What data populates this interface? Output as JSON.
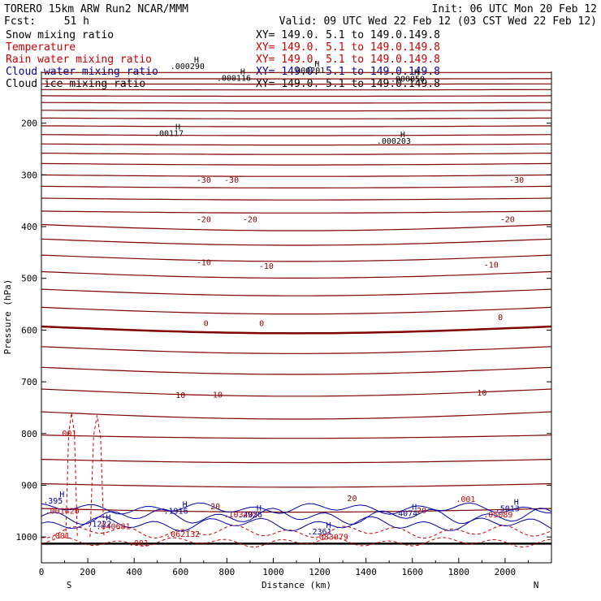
{
  "header": {
    "title": "TORERO  15km ARW   Run2    NCAR/MMM",
    "init": "Init: 06 UTC Mon 20 Feb 12",
    "fcst_label": "Fcst:",
    "fcst_value": "51 h",
    "valid": "Valid: 09 UTC Wed 22 Feb 12 (03 CST Wed 22 Feb 12)"
  },
  "legend": {
    "fields": [
      {
        "name": "Snow mixing ratio",
        "color": "#000000",
        "xy": "XY= 149.0.  5.1 to 149.0.149.8"
      },
      {
        "name": "Temperature",
        "color": "#cc0000",
        "xy": "XY= 149.0.  5.1 to 149.0.149.8"
      },
      {
        "name": "Rain water mixing ratio",
        "color": "#cc0000",
        "xy": "XY= 149.0.  5.1 to 149.0.149.8"
      },
      {
        "name": "Cloud water mixing ratio",
        "color": "#0000aa",
        "xy": "XY= 149.0.  5.1 to 149.0.149.8"
      },
      {
        "name": "Cloud ice mixing ratio",
        "color": "#000000",
        "xy": "XY= 149.0.  5.1 to 149.0.149.8"
      }
    ]
  },
  "chart_data": {
    "type": "contour-cross-section",
    "xlabel": "Distance (km)",
    "ylabel": "Pressure (hPa)",
    "x_ticks": [
      0,
      200,
      400,
      600,
      800,
      1000,
      1200,
      1400,
      1600,
      1800,
      2000
    ],
    "y_ticks": [
      200,
      300,
      400,
      500,
      600,
      700,
      800,
      900,
      1000
    ],
    "xlim": [
      0,
      2200
    ],
    "ylim": [
      1050,
      100
    ],
    "left_end_label": "S",
    "right_end_label": "N",
    "temperature_contour_labels": [
      {
        "x": 700,
        "p": 309,
        "text": "-30"
      },
      {
        "x": 820,
        "p": 309,
        "text": "-30"
      },
      {
        "x": 2050,
        "p": 309,
        "text": "-30"
      },
      {
        "x": 700,
        "p": 385,
        "text": "-20"
      },
      {
        "x": 900,
        "p": 385,
        "text": "-20"
      },
      {
        "x": 2010,
        "p": 385,
        "text": "-20"
      },
      {
        "x": 700,
        "p": 468,
        "text": "-10"
      },
      {
        "x": 970,
        "p": 475,
        "text": "-10"
      },
      {
        "x": 1940,
        "p": 473,
        "text": "-10"
      },
      {
        "x": 710,
        "p": 586,
        "text": "0"
      },
      {
        "x": 950,
        "p": 586,
        "text": "0"
      },
      {
        "x": 1980,
        "p": 574,
        "text": "0"
      },
      {
        "x": 600,
        "p": 725,
        "text": "10"
      },
      {
        "x": 760,
        "p": 724,
        "text": "10"
      },
      {
        "x": 1900,
        "p": 720,
        "text": "10"
      },
      {
        "x": 750,
        "p": 940,
        "text": "20"
      },
      {
        "x": 1340,
        "p": 924,
        "text": "20"
      },
      {
        "x": 1640,
        "p": 948,
        "text": "20"
      }
    ],
    "ice_maxima": [
      {
        "x": 630,
        "p": 95,
        "text": ".000290"
      },
      {
        "x": 830,
        "p": 118,
        "text": ".000116"
      },
      {
        "x": 1150,
        "p": 103,
        "text": ".000201"
      },
      {
        "x": 1580,
        "p": 120,
        "text": ".000850"
      },
      {
        "x": 550,
        "p": 225,
        "text": ".00117"
      },
      {
        "x": 1520,
        "p": 240,
        "text": ".000203"
      }
    ],
    "rain_labels": [
      {
        "x": 110,
        "p": 805,
        "text": ".001"
      },
      {
        "x": 80,
        "p": 1003,
        "text": ".001"
      },
      {
        "x": 420,
        "p": 1017,
        "text": ".001"
      },
      {
        "x": 90,
        "p": 955,
        "text": ".001420"
      },
      {
        "x": 310,
        "p": 985,
        "text": ".040681"
      },
      {
        "x": 610,
        "p": 1000,
        "text": ".062132"
      },
      {
        "x": 860,
        "p": 962,
        "text": ".103405"
      },
      {
        "x": 1250,
        "p": 1005,
        "text": ".083079"
      },
      {
        "x": 1830,
        "p": 932,
        "text": ".001"
      },
      {
        "x": 1970,
        "p": 962,
        "text": ".05089"
      }
    ],
    "cloud_water_labels": [
      {
        "x": 50,
        "p": 935,
        "text": ".395"
      },
      {
        "x": 250,
        "p": 980,
        "text": ".1222"
      },
      {
        "x": 580,
        "p": 955,
        "text": ".1916"
      },
      {
        "x": 900,
        "p": 962,
        "text": ".2926"
      },
      {
        "x": 1200,
        "p": 995,
        "text": ".2361"
      },
      {
        "x": 1570,
        "p": 960,
        "text": ".4074"
      },
      {
        "x": 2010,
        "p": 950,
        "text": ".5013"
      }
    ],
    "max_marker": "H"
  }
}
